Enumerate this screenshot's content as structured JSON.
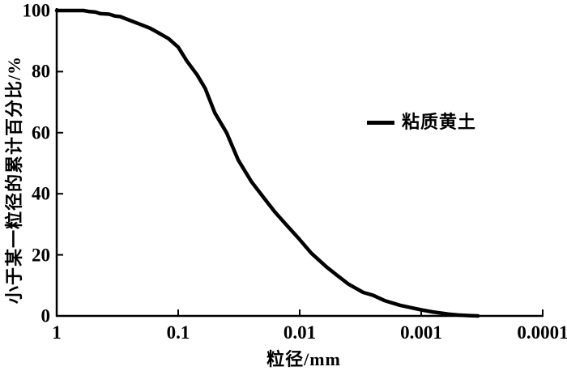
{
  "figure": {
    "background_color": "#ffffff",
    "line_color": "#000000"
  },
  "chart_data": {
    "type": "line",
    "title": "",
    "x_axis": {
      "label": "粒径/mm",
      "scale": "log-reversed",
      "ticks": [
        "1",
        "0.1",
        "0.01",
        "0.001",
        "0.0001"
      ],
      "range": [
        1,
        0.0001
      ],
      "grid": false
    },
    "y_axis": {
      "label": "小于某一粒径的累计百分比/%",
      "ticks": [
        "0",
        "20",
        "40",
        "60",
        "80",
        "100"
      ],
      "range": [
        0,
        100
      ],
      "grid": false
    },
    "legend": {
      "position": "right-center",
      "entries": [
        {
          "label": "粘质黄土",
          "color": "#000000",
          "style": "solid-thick"
        }
      ]
    },
    "series": [
      {
        "name": "粘质黄土",
        "points_unit": [
          "diameter_mm",
          "cumulative_percent"
        ],
        "points": [
          [
            1.0,
            100
          ],
          [
            0.75,
            100
          ],
          [
            0.6,
            100
          ],
          [
            0.55,
            99.7
          ],
          [
            0.48,
            99.5
          ],
          [
            0.44,
            99.0
          ],
          [
            0.37,
            98.8
          ],
          [
            0.33,
            98.2
          ],
          [
            0.3,
            98.0
          ],
          [
            0.25,
            96.8
          ],
          [
            0.2,
            95.3
          ],
          [
            0.17,
            94.2
          ],
          [
            0.15,
            93.0
          ],
          [
            0.12,
            90.8
          ],
          [
            0.1,
            88.0
          ],
          [
            0.085,
            83.5
          ],
          [
            0.07,
            79.0
          ],
          [
            0.06,
            74.5
          ],
          [
            0.05,
            66.5
          ],
          [
            0.04,
            60.0
          ],
          [
            0.032,
            51.0
          ],
          [
            0.025,
            44.0
          ],
          [
            0.02,
            39.0
          ],
          [
            0.016,
            34.0
          ],
          [
            0.013,
            30.0
          ],
          [
            0.01,
            25.0
          ],
          [
            0.008,
            20.5
          ],
          [
            0.006,
            16.0
          ],
          [
            0.005,
            13.5
          ],
          [
            0.004,
            10.5
          ],
          [
            0.003,
            7.7
          ],
          [
            0.0025,
            6.8
          ],
          [
            0.002,
            5.0
          ],
          [
            0.0015,
            3.5
          ],
          [
            0.001,
            2.0
          ],
          [
            0.0008,
            1.3
          ],
          [
            0.0006,
            0.6
          ],
          [
            0.0005,
            0.3
          ],
          [
            0.0004,
            0.1
          ],
          [
            0.00034,
            0.0
          ]
        ]
      }
    ]
  }
}
